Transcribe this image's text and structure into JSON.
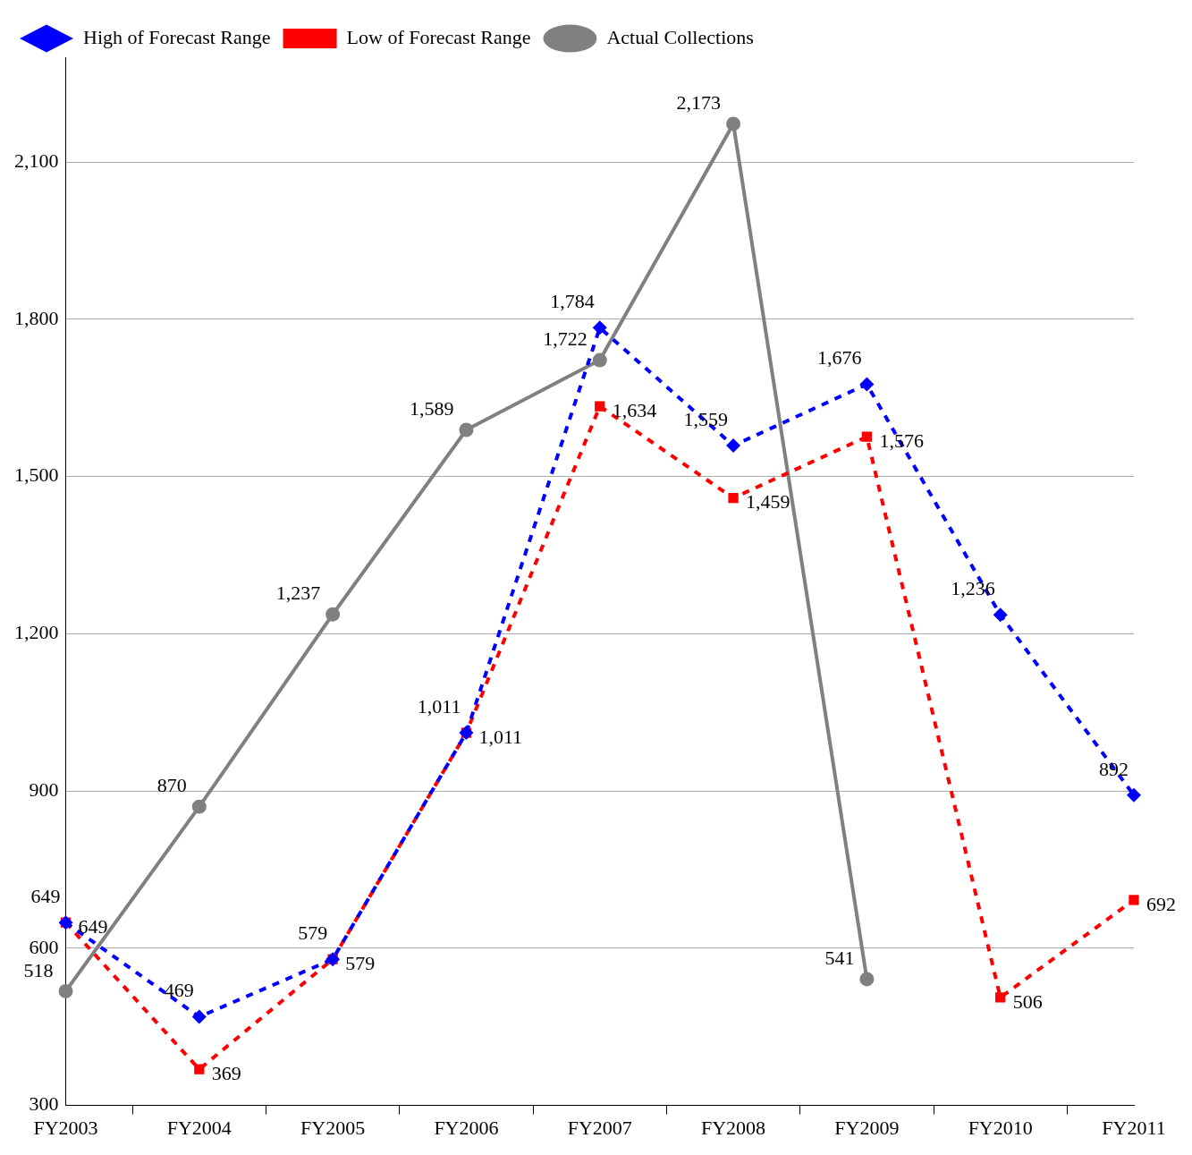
{
  "chart_data": {
    "type": "line",
    "categories": [
      "FY2003",
      "FY2004",
      "FY2005",
      "FY2006",
      "FY2007",
      "FY2008",
      "FY2009",
      "FY2010",
      "FY2011"
    ],
    "series": [
      {
        "name": "High of Forecast Range",
        "color": "#0000ff",
        "marker": "diamond",
        "line_style": "dashed",
        "values": [
          649,
          469,
          579,
          1011,
          1784,
          1559,
          1676,
          1236,
          892
        ],
        "value_labels": [
          "649",
          "469",
          "579",
          "1,011",
          "1,784",
          "1,559",
          "1,676",
          "1,236",
          "892"
        ]
      },
      {
        "name": "Low of Forecast Range",
        "color": "#ff0000",
        "marker": "square",
        "line_style": "dashed",
        "values": [
          649,
          369,
          579,
          1011,
          1634,
          1459,
          1576,
          506,
          692
        ],
        "value_labels": [
          "649",
          "369",
          "579",
          "1,011",
          "1,634",
          "1,459",
          "1,576",
          "506",
          "692"
        ]
      },
      {
        "name": "Actual Collections",
        "color": "#808080",
        "marker": "circle",
        "line_style": "solid",
        "values": [
          518,
          870,
          1237,
          1589,
          1722,
          2173,
          541,
          null,
          null
        ],
        "value_labels": [
          "518",
          "870",
          "1,237",
          "1,589",
          "1,722",
          "2,173",
          "541",
          null,
          null
        ]
      }
    ],
    "ylim": [
      300,
      2300
    ],
    "yticks": [
      300,
      600,
      900,
      {
        "value": 1200,
        "label": "1,200"
      },
      {
        "value": 1500,
        "label": "1,500"
      },
      {
        "value": 1800,
        "label": "1,800"
      },
      {
        "value": 2100,
        "label": "2,100"
      }
    ],
    "grid": "y",
    "legend": "top left"
  }
}
